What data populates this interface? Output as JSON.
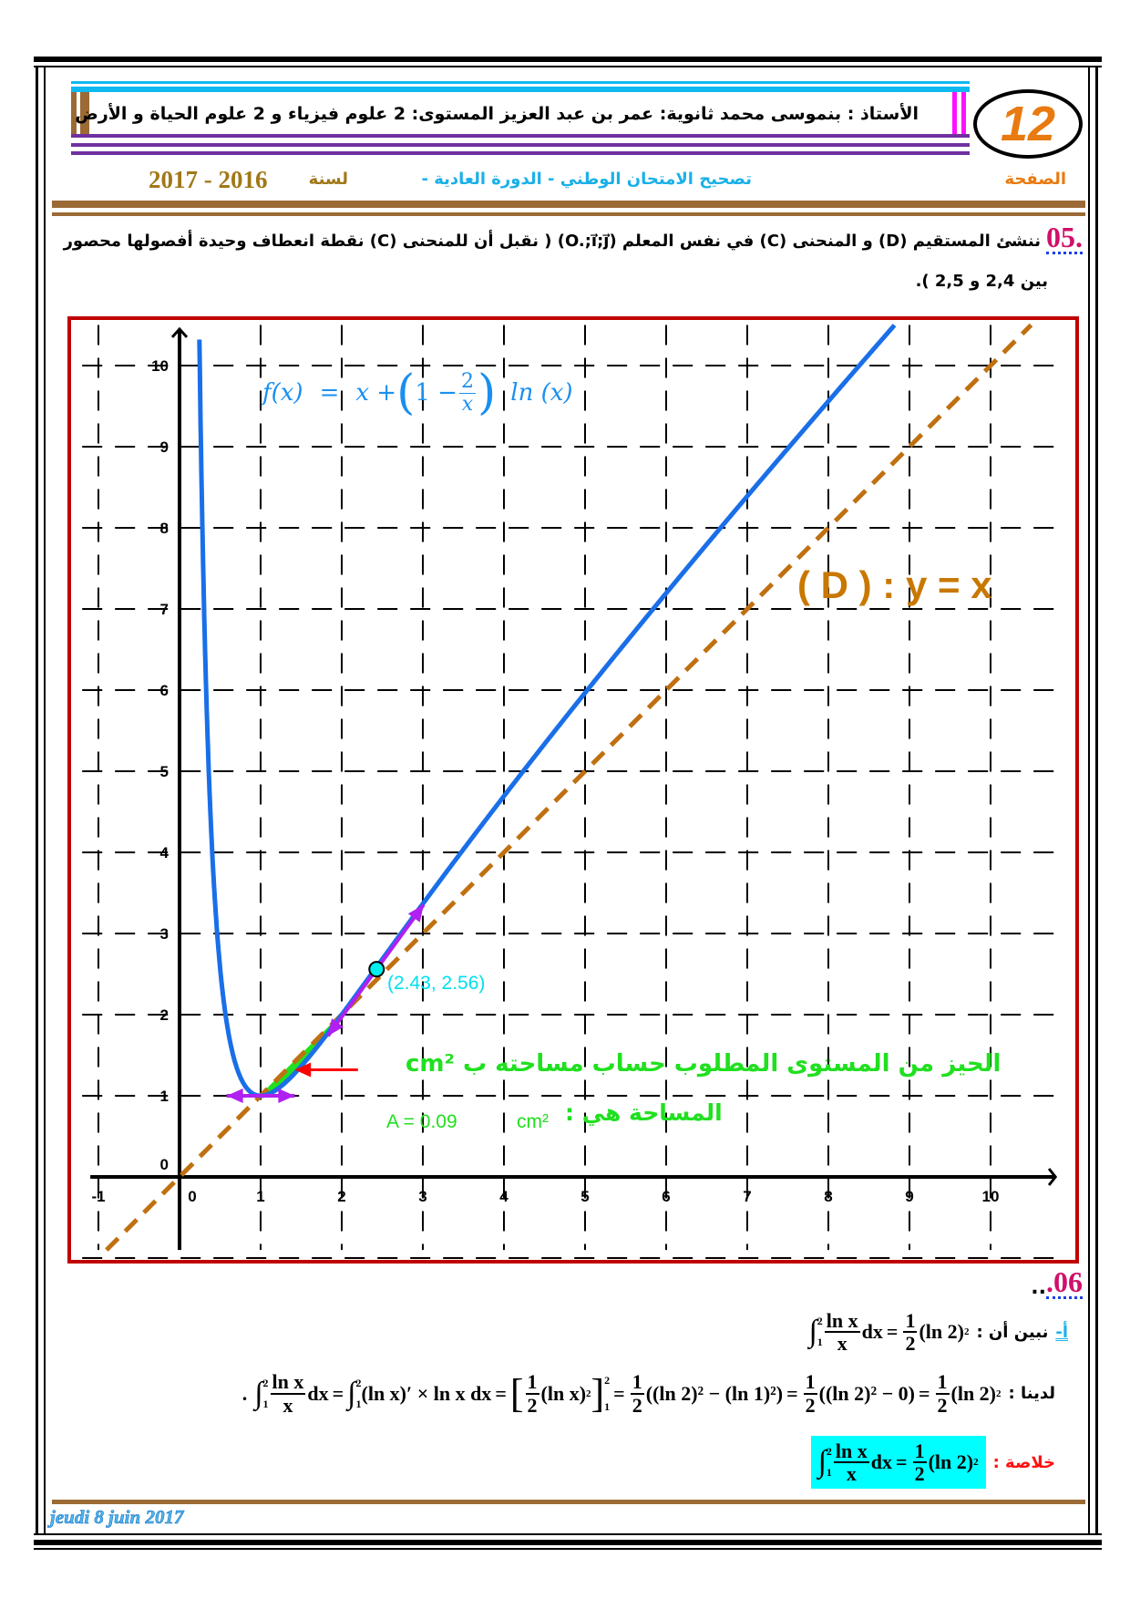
{
  "header": {
    "teacher_line": "الأستاذ : بنموسى محمد   ثانوية: عمر بن عبد العزيز  المستوى:  2 علوم فيزياء و  2 علوم الحياة و الأرض",
    "page_number": "12",
    "page_label": "الصفحة",
    "exam_title": "تصحيح الامتحان الوطني  - الدورة العادية -",
    "year_label": "لسنة",
    "year_value": "2017 - 2016"
  },
  "q05": {
    "number": ".05",
    "line1": "ننشئ المستقيم (D) و المنحنى (C) في نفس المعلم (O.;i⃗;j⃗) ( نقبل أن للمنحنى (C) نقطة انعطاف وحيدة أفصولها محصور",
    "line2": "بين 2,4 و 2,5 )."
  },
  "chart_data": {
    "type": "line",
    "function_label": {
      "f": "f(x)",
      "eq": "=",
      "x_plus": "x +",
      "one_minus": "1 −",
      "num": "2",
      "den": "x",
      "ln": "ln (x)"
    },
    "xlim": [
      -1,
      10.8
    ],
    "ylim": [
      -0.9,
      10.5
    ],
    "x_ticks": [
      "-1",
      "0",
      "1",
      "2",
      "3",
      "4",
      "5",
      "6",
      "7",
      "8",
      "9",
      "10"
    ],
    "y_ticks": [
      "0",
      "1",
      "2",
      "3",
      "4",
      "5",
      "6",
      "7",
      "8",
      "9",
      "10"
    ],
    "grid": true,
    "series": [
      {
        "name": "f(x) = x + (1 − 2/x) ln(x)",
        "kind": "curve",
        "color": "#1a6fe8"
      },
      {
        "name": "(D) : y = x",
        "kind": "line",
        "color": "#c07010",
        "dashed": true
      }
    ],
    "line_label": "( D ) : y = x",
    "inflection_point": {
      "x": 2.43,
      "y": 2.56,
      "label": "(2.43, 2.56)",
      "color": "#00f0f0"
    },
    "tangent_slope_at_inflection": 1.37,
    "horizontal_tangent_point": {
      "x": 1,
      "y": 1
    },
    "shaded_region": {
      "from": 1,
      "to": 2,
      "color": "#20e020"
    },
    "region_caption": "الحيز من المستوى المطلوب حساب مساحته ب cm²",
    "area_label": "المساحة هي :",
    "area_unit": "cm²",
    "area_value": "A = 0.09",
    "colors": {
      "curve": "#1a6fe8",
      "line": "#c07010",
      "tangent": "#b020f0",
      "arrow": "#ff0000",
      "frame": "#c00000"
    }
  },
  "q06": {
    "number": ".06",
    "dots": "..",
    "part_label": "أ-",
    "show_text": "نبين أن :",
    "we_have": "لدينا :",
    "conclusion": "خلاصة :",
    "m": {
      "one": "1",
      "two": "2",
      "lnx": "ln x",
      "x": "x",
      "dx": "dx",
      "eq": "=",
      "ln2sq": "(ln 2)",
      "sq": "2",
      "lnx_prime": "(ln x)′ × ln x dx",
      "lnx_paren": "(ln x)",
      "diff1": "((ln 2)² − (ln 1)²)",
      "diff2": "((ln 2)² − 0)",
      "dot": "."
    }
  },
  "footer": {
    "date": "jeudi 8 juin 2017"
  }
}
